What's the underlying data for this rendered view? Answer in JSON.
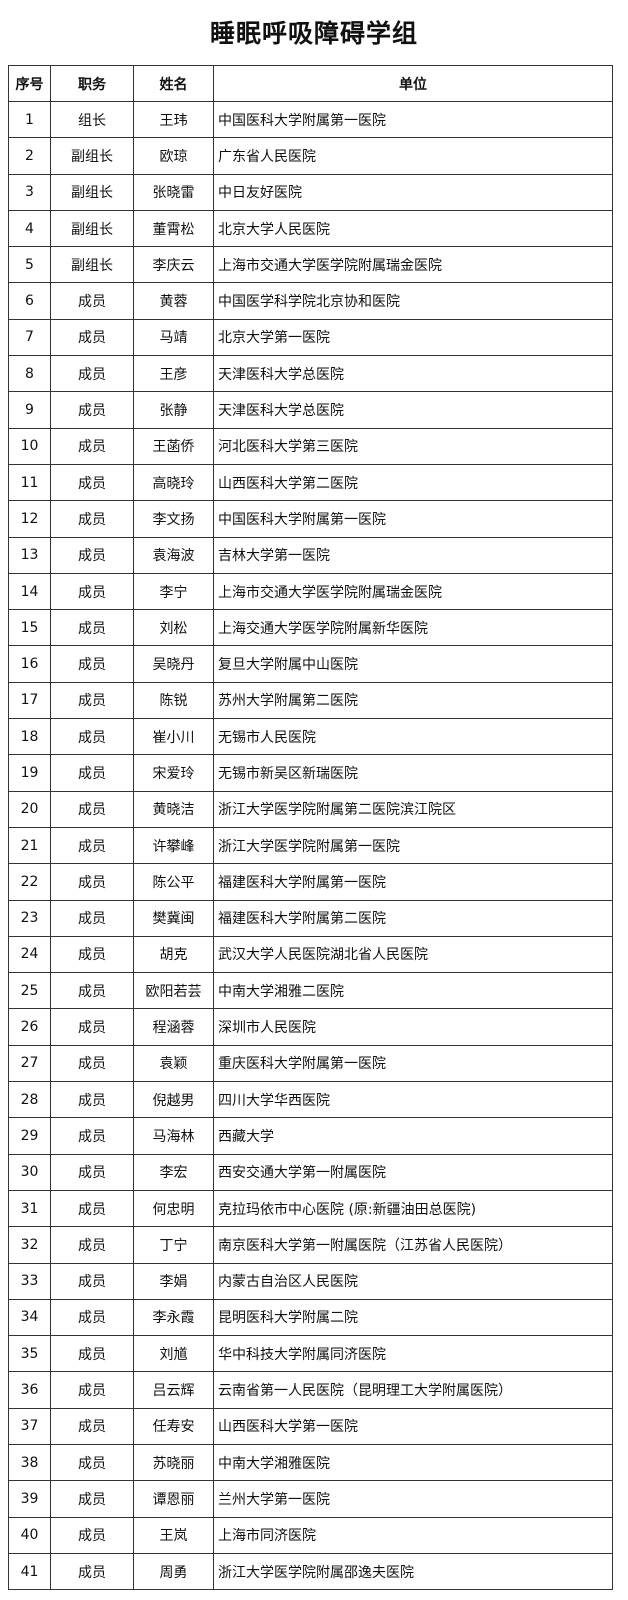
{
  "title": "睡眠呼吸障碍学组",
  "table": {
    "header": [
      "序号",
      "职务",
      "姓名",
      "单位"
    ],
    "rows": [
      [
        1,
        "组长",
        "王玮",
        "中国医科大学附属第一医院"
      ],
      [
        2,
        "副组长",
        "欧琼",
        "广东省人民医院"
      ],
      [
        3,
        "副组长",
        "张晓雷",
        "中日友好医院"
      ],
      [
        4,
        "副组长",
        "董霄松",
        "北京大学人民医院"
      ],
      [
        5,
        "副组长",
        "李庆云",
        "上海市交通大学医学院附属瑞金医院"
      ],
      [
        6,
        "成员",
        "黄蓉",
        "中国医学科学院北京协和医院"
      ],
      [
        7,
        "成员",
        "马靖",
        "北京大学第一医院"
      ],
      [
        8,
        "成员",
        "王彦",
        "天津医科大学总医院"
      ],
      [
        9,
        "成员",
        "张静",
        "天津医科大学总医院"
      ],
      [
        10,
        "成员",
        "王菡侨",
        "河北医科大学第三医院"
      ],
      [
        11,
        "成员",
        "高晓玲",
        "山西医科大学第二医院"
      ],
      [
        12,
        "成员",
        "李文扬",
        "中国医科大学附属第一医院"
      ],
      [
        13,
        "成员",
        "袁海波",
        "吉林大学第一医院"
      ],
      [
        14,
        "成员",
        "李宁",
        "上海市交通大学医学院附属瑞金医院"
      ],
      [
        15,
        "成员",
        "刘松",
        "上海交通大学医学院附属新华医院"
      ],
      [
        16,
        "成员",
        "吴晓丹",
        "复旦大学附属中山医院"
      ],
      [
        17,
        "成员",
        "陈锐",
        "苏州大学附属第二医院"
      ],
      [
        18,
        "成员",
        "崔小川",
        "无锡市人民医院"
      ],
      [
        19,
        "成员",
        "宋爱玲",
        "无锡市新吴区新瑞医院"
      ],
      [
        20,
        "成员",
        "黄晓洁",
        "浙江大学医学院附属第二医院滨江院区"
      ],
      [
        21,
        "成员",
        "许攀峰",
        "浙江大学医学院附属第一医院"
      ],
      [
        22,
        "成员",
        "陈公平",
        "福建医科大学附属第一医院"
      ],
      [
        23,
        "成员",
        "樊冀闽",
        "福建医科大学附属第二医院"
      ],
      [
        24,
        "成员",
        "胡克",
        "武汉大学人民医院湖北省人民医院"
      ],
      [
        25,
        "成员",
        "欧阳若芸",
        "中南大学湘雅二医院"
      ],
      [
        26,
        "成员",
        "程涵蓉",
        "深圳市人民医院"
      ],
      [
        27,
        "成员",
        "袁颖",
        "重庆医科大学附属第一医院"
      ],
      [
        28,
        "成员",
        "倪越男",
        "四川大学华西医院"
      ],
      [
        29,
        "成员",
        "马海林",
        "西藏大学"
      ],
      [
        30,
        "成员",
        "李宏",
        "西安交通大学第一附属医院"
      ],
      [
        31,
        "成员",
        "何忠明",
        "克拉玛依市中心医院 (原:新疆油田总医院)"
      ],
      [
        32,
        "成员",
        "丁宁",
        "南京医科大学第一附属医院（江苏省人民医院）"
      ],
      [
        33,
        "成员",
        "李娟",
        "内蒙古自治区人民医院"
      ],
      [
        34,
        "成员",
        "李永霞",
        "昆明医科大学附属二院"
      ],
      [
        35,
        "成员",
        "刘馗",
        "华中科技大学附属同济医院"
      ],
      [
        36,
        "成员",
        "吕云辉",
        "云南省第一人民医院（昆明理工大学附属医院）"
      ],
      [
        37,
        "成员",
        "任寿安",
        "山西医科大学第一医院"
      ],
      [
        38,
        "成员",
        "苏晓丽",
        "中南大学湘雅医院"
      ],
      [
        39,
        "成员",
        "谭恩丽",
        "兰州大学第一医院"
      ],
      [
        40,
        "成员",
        "王岚",
        "上海市同济医院"
      ],
      [
        41,
        "成员",
        "周勇",
        "浙江大学医学院附属邵逸夫医院"
      ]
    ]
  }
}
